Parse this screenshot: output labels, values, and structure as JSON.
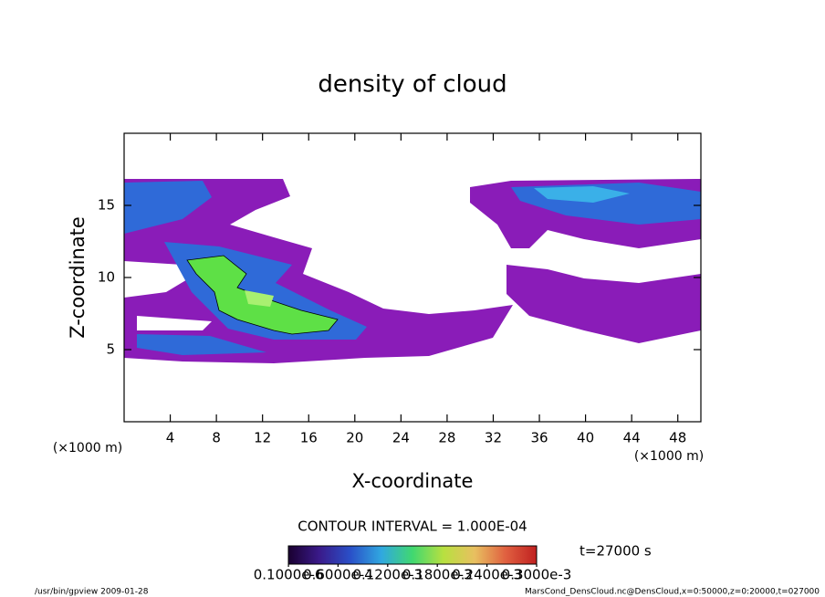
{
  "chart_data": {
    "type": "contour",
    "title": "density of cloud",
    "x_label": "X-coordinate",
    "y_label": "Z-coordinate",
    "x_unit_left": "(×1000 m)",
    "x_unit_right": "(×1000 m)",
    "xlim": [
      0,
      50
    ],
    "ylim": [
      0,
      20
    ],
    "xticks": [
      4,
      8,
      12,
      16,
      20,
      24,
      28,
      32,
      36,
      40,
      44,
      48
    ],
    "yticks": [
      5,
      10,
      15
    ],
    "contour_interval": "CONTOUR INTERVAL = 1.000E-04",
    "time": "t=27000 s",
    "colorbar": {
      "clim": [
        0,
        0.0003
      ],
      "colors": [
        "#1a0030",
        "#3a1a8a",
        "#2a50c8",
        "#30a8e0",
        "#40d870",
        "#b8e040",
        "#e8c060",
        "#e06040",
        "#c02020"
      ],
      "ticks": [
        {
          "value": 1e-07,
          "label": "0.1000e-6"
        },
        {
          "value": 6e-05,
          "label": "0.6000e-4"
        },
        {
          "value": 0.00012,
          "label": "0.1200e-3"
        },
        {
          "value": 0.00018,
          "label": "0.1800e-3"
        },
        {
          "value": 0.00024,
          "label": "0.2400e-3"
        },
        {
          "value": 0.0003,
          "label": "0.3000e-3"
        }
      ]
    },
    "footer_left": "/usr/bin/gpview  2009-01-28",
    "footer_right": "MarsCond_DensCloud.nc@DensCloud,x=0:50000,z=0:20000,t=027000"
  }
}
